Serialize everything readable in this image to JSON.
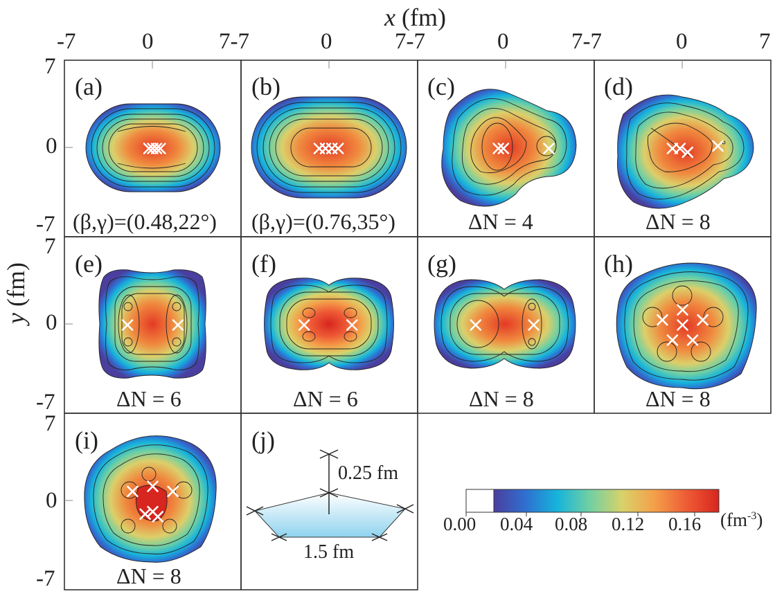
{
  "axes": {
    "x_title": "x",
    "x_unit": "(fm)",
    "y_title": "y",
    "y_unit": "(fm)",
    "x_ticks": [
      "-7",
      "0",
      "7-7",
      "0",
      "7-7",
      "0",
      "7-7",
      "0",
      "7"
    ],
    "y_ticks": [
      "7",
      "0",
      "-7",
      "7",
      "0",
      "-7",
      "7",
      "0",
      "-7"
    ]
  },
  "chart_data": {
    "type": "heatmap",
    "title": "",
    "xlabel": "x (fm)",
    "ylabel": "y (fm)",
    "xlim": [
      -7,
      7
    ],
    "ylim": [
      -7,
      7
    ],
    "grid": false,
    "colorbar": {
      "ticks": [
        "0.00",
        "0.04",
        "0.08",
        "0.12",
        "0.16"
      ],
      "tick_values": [
        0.0,
        0.04,
        0.08,
        0.12,
        0.16
      ],
      "range": [
        0.0,
        0.18
      ],
      "unit_base": "(fm",
      "unit_exp": "-3",
      "unit_close": ")",
      "colors": [
        "#ffffff",
        "#4a3f9e",
        "#2f6fd0",
        "#16b3dc",
        "#6dcfa5",
        "#d9d26a",
        "#f3a14a",
        "#ee5a35",
        "#d7261f"
      ]
    },
    "panels": [
      {
        "label": "(a)",
        "caption": "(β,γ)=(0.48,22°)",
        "crosses": [
          [
            0,
            0
          ],
          [
            0.3,
            0
          ],
          [
            -0.3,
            0
          ],
          [
            0.6,
            0
          ]
        ]
      },
      {
        "label": "(b)",
        "caption": "(β,γ)=(0.76,35°)",
        "crosses": [
          [
            -0.8,
            0
          ],
          [
            -0.3,
            0
          ],
          [
            0.2,
            0
          ],
          [
            0.7,
            0
          ]
        ]
      },
      {
        "label": "(c)",
        "caption": "ΔN = 4",
        "crosses": [
          [
            -0.6,
            0
          ],
          [
            -0.2,
            0
          ],
          [
            3.4,
            0
          ]
        ]
      },
      {
        "label": "(d)",
        "caption": "ΔN = 8",
        "crosses": [
          [
            -0.8,
            0
          ],
          [
            -0.2,
            0
          ],
          [
            0.4,
            -0.3
          ],
          [
            2.8,
            0.2
          ]
        ]
      },
      {
        "label": "(e)",
        "caption": "ΔN = 6",
        "crosses": [
          [
            -2.0,
            0
          ],
          [
            2.0,
            0
          ]
        ]
      },
      {
        "label": "(f)",
        "caption": "ΔN = 6",
        "crosses": [
          [
            -2.0,
            0
          ],
          [
            1.8,
            0
          ]
        ]
      },
      {
        "label": "(g)",
        "caption": "ΔN = 8",
        "crosses": [
          [
            -2.4,
            0
          ],
          [
            2.2,
            0
          ]
        ]
      },
      {
        "label": "(h)",
        "caption": "ΔN = 8",
        "crosses": [
          [
            0,
            1.2
          ],
          [
            -1.6,
            0.4
          ],
          [
            1.6,
            0.4
          ],
          [
            -0.8,
            -1.2
          ],
          [
            0.8,
            -1.2
          ],
          [
            0,
            0
          ]
        ]
      },
      {
        "label": "(i)",
        "caption": "ΔN = 8",
        "crosses": [
          [
            -1.6,
            0.8
          ],
          [
            0,
            1.2
          ],
          [
            1.6,
            0.8
          ],
          [
            0,
            -0.8
          ],
          [
            0.4,
            -1.2
          ],
          [
            -0.6,
            -1.0
          ]
        ]
      },
      {
        "label": "(j)",
        "caption": "",
        "annotations": [
          "0.25 fm",
          "1.5 fm"
        ]
      }
    ]
  }
}
